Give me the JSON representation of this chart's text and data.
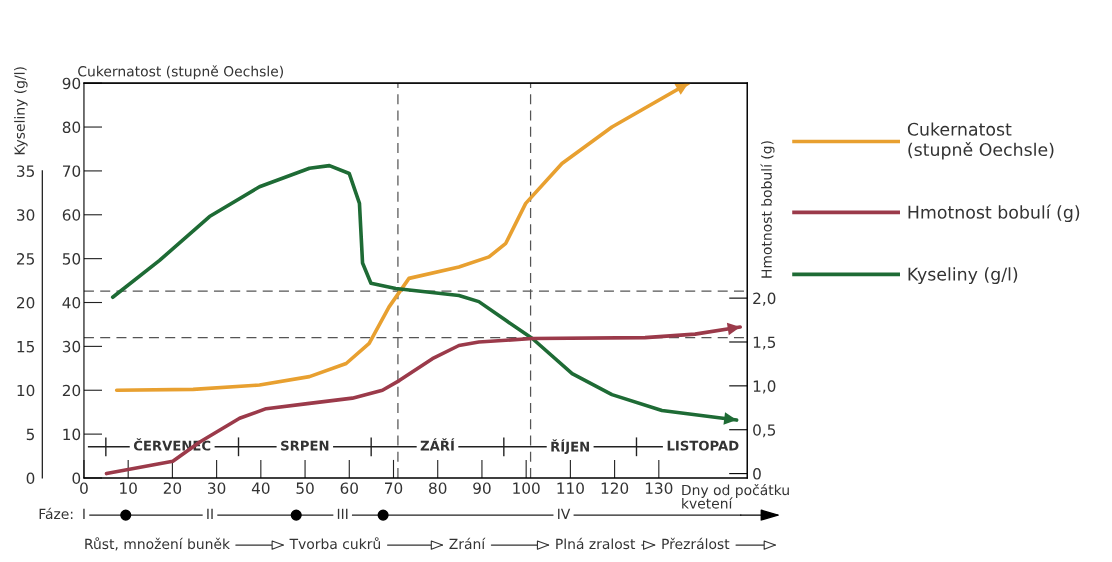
{
  "chart_data": {
    "type": "line",
    "xlabel": "Dny od počátku\nkvetení",
    "ylabel": "Cukernatost (stupně Oechsle)",
    "y2label": "Kyseliny (g/l)",
    "y3label": "Hmotnost bobulí (g)",
    "xlim": [
      0,
      150
    ],
    "xticks": [
      0,
      10,
      20,
      30,
      40,
      50,
      60,
      70,
      80,
      90,
      100,
      110,
      120,
      130
    ],
    "ylim": [
      0,
      90
    ],
    "yticks": [
      0,
      10,
      20,
      30,
      40,
      50,
      60,
      70,
      80,
      90
    ],
    "y2lim": [
      0,
      45
    ],
    "y2ticks": [
      0,
      5,
      10,
      15,
      20,
      25,
      30,
      35
    ],
    "y3lim": [
      -0.05,
      4.45
    ],
    "y3ticks": [
      0,
      {
        "value": 0.5,
        "label": "0,5"
      },
      {
        "value": 1.0,
        "label": "1,0"
      },
      {
        "value": 1.5,
        "label": "1,5"
      },
      {
        "value": 2.0,
        "label": "2,0"
      }
    ],
    "series": [
      {
        "name": "Cukernatost\n(stupně Oechsle)",
        "color": "#e8a030",
        "x": [
          7.4,
          24.7,
          39.7,
          51,
          59.3,
          64.5,
          69,
          73.5,
          84.8,
          91.6,
          95.4,
          99.9,
          108.1,
          119.4,
          136.7
        ],
        "values": [
          20,
          20.2,
          21.2,
          23.1,
          26.1,
          30.7,
          39,
          45.5,
          48.1,
          50.4,
          53.5,
          62.6,
          71.7,
          80,
          90
        ]
      },
      {
        "name": "Hmotnost bobulí (g)",
        "color": "#9b3a4a",
        "axis": "y3",
        "x": [
          5.1,
          20.1,
          26.2,
          35.2,
          41.2,
          51,
          60.7,
          67.5,
          71.3,
          78.8,
          84.8,
          89.3,
          101.4,
          126.9,
          138.2,
          148.4
        ],
        "values": [
          0,
          0.14,
          0.36,
          0.63,
          0.74,
          0.8,
          0.86,
          0.95,
          1.06,
          1.31,
          1.46,
          1.5,
          1.54,
          1.55,
          1.59,
          1.67
        ]
      },
      {
        "name": "Kyseliny (g/l)",
        "color": "#1e6b35",
        "axis": "y2",
        "x": [
          6.5,
          17.1,
          28.4,
          39.7,
          51,
          55.5,
          60,
          62.3,
          63,
          64.9,
          70.5,
          84.8,
          89.3,
          95.3,
          101.4,
          110.4,
          119.4,
          130.7,
          147.6
        ],
        "values": [
          20.6,
          24.8,
          29.8,
          33.2,
          35.3,
          35.6,
          34.7,
          31.3,
          24.5,
          22.2,
          21.6,
          20.8,
          20.1,
          18,
          15.9,
          11.9,
          9.5,
          7.7,
          6.6
        ]
      }
    ],
    "ref_lines": [
      {
        "axis": "y",
        "value": 42.6,
        "line_style": "dashed",
        "color": "#555555"
      },
      {
        "axis": "y",
        "value": 32,
        "line_style": "dashed",
        "color": "#555555"
      },
      {
        "axis": "x",
        "value": 71,
        "line_style": "dashed",
        "color": "#555555"
      },
      {
        "axis": "x",
        "value": 101,
        "line_style": "dashed",
        "color": "#555555"
      }
    ],
    "annotations": [
      "ČERVENEC",
      "SRPEN",
      "ZÁŘÍ",
      "ŘÍJEN",
      "LISTOPAD",
      "Fáze:",
      "I",
      "II",
      "III",
      "IV",
      "Růst, množení buněk",
      "Tvorba cukrů",
      "Zrání",
      "Plná zralost",
      "Přezrálost"
    ],
    "legend": "right",
    "grid": false,
    "marker": "none",
    "line_style": "solid"
  }
}
